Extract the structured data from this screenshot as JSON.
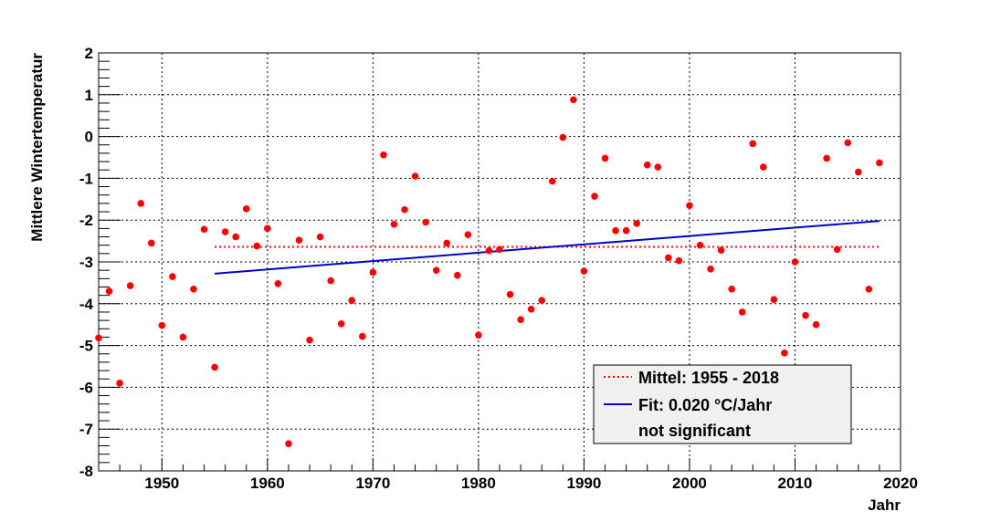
{
  "chart_data": {
    "type": "scatter",
    "title": "",
    "xlabel": "Jahr",
    "ylabel": "Mittlere Wintertemperatur",
    "xlim": [
      1944,
      2020
    ],
    "ylim": [
      -8,
      2
    ],
    "grid": true,
    "x_ticks": [
      1950,
      1960,
      1970,
      1980,
      1990,
      2000,
      2010,
      2020
    ],
    "y_ticks": [
      2,
      1,
      0,
      -1,
      -2,
      -3,
      -4,
      -5,
      -6,
      -7,
      -8
    ],
    "x_tick_labels": [
      "1950",
      "1960",
      "1970",
      "1980",
      "1990",
      "2000",
      "2010",
      "2020"
    ],
    "y_tick_labels": [
      "2",
      "1",
      "0",
      "-1",
      "-2",
      "-3",
      "-4",
      "-5",
      "-6",
      "-7",
      "-8"
    ],
    "series": [
      {
        "name": "Wintertemperatur",
        "kind": "points",
        "color": "#ff0000",
        "x": [
          1944,
          1945,
          1946,
          1947,
          1948,
          1949,
          1950,
          1951,
          1952,
          1953,
          1954,
          1955,
          1956,
          1957,
          1958,
          1959,
          1960,
          1961,
          1962,
          1963,
          1964,
          1965,
          1966,
          1967,
          1968,
          1969,
          1970,
          1971,
          1972,
          1973,
          1974,
          1975,
          1976,
          1977,
          1978,
          1979,
          1980,
          1981,
          1982,
          1983,
          1984,
          1985,
          1986,
          1987,
          1988,
          1989,
          1990,
          1991,
          1992,
          1993,
          1994,
          1995,
          1996,
          1997,
          1998,
          1999,
          2000,
          2001,
          2002,
          2003,
          2004,
          2005,
          2006,
          2007,
          2008,
          2009,
          2010,
          2011,
          2012,
          2013,
          2014,
          2015,
          2016,
          2017,
          2018
        ],
        "y": [
          -4.82,
          -3.7,
          -5.9,
          -3.57,
          -1.6,
          -2.55,
          -4.52,
          -3.35,
          -4.8,
          -3.65,
          -2.22,
          -5.52,
          -2.28,
          -2.4,
          -1.73,
          -2.62,
          -2.2,
          -3.52,
          -7.35,
          -2.48,
          -4.87,
          -2.4,
          -3.45,
          -4.48,
          -3.92,
          -4.78,
          -3.25,
          -0.44,
          -2.1,
          -1.75,
          -0.95,
          -2.05,
          -3.2,
          -2.55,
          -3.32,
          -2.35,
          -4.75,
          -2.73,
          -2.7,
          -3.78,
          -4.38,
          -4.13,
          -3.92,
          -1.07,
          -0.02,
          0.88,
          -3.22,
          -1.43,
          -0.52,
          -2.25,
          -2.25,
          -2.08,
          -0.68,
          -0.73,
          -2.9,
          -2.97,
          -1.65,
          -2.6,
          -3.17,
          -2.72,
          -3.65,
          -4.2,
          -0.17,
          -0.73,
          -3.9,
          -5.18,
          -3.0,
          -4.28,
          -4.5,
          -0.52,
          -2.7,
          -0.15,
          -0.85,
          -3.65,
          -0.63
        ]
      },
      {
        "name": "Mittel: 1955 - 2018",
        "kind": "hline",
        "color": "#ff0000",
        "style": "dotted",
        "x": [
          1955,
          2018
        ],
        "y": [
          -2.64,
          -2.64
        ]
      },
      {
        "name": "Fit: 0.020 °C/Jahr",
        "kind": "line",
        "color": "#0000cc",
        "style": "solid",
        "x": [
          1955,
          2018
        ],
        "y": [
          -3.28,
          -2.02
        ]
      }
    ],
    "legend": {
      "position": "bottom-right",
      "entries": [
        {
          "label": "Mittel: 1955 - 2018",
          "color": "#ff0000",
          "style": "dotted"
        },
        {
          "label": "Fit: 0.020 °C/Jahr",
          "color": "#0000cc",
          "style": "solid"
        },
        {
          "label": "not significant",
          "color": "",
          "style": "none"
        }
      ]
    }
  }
}
